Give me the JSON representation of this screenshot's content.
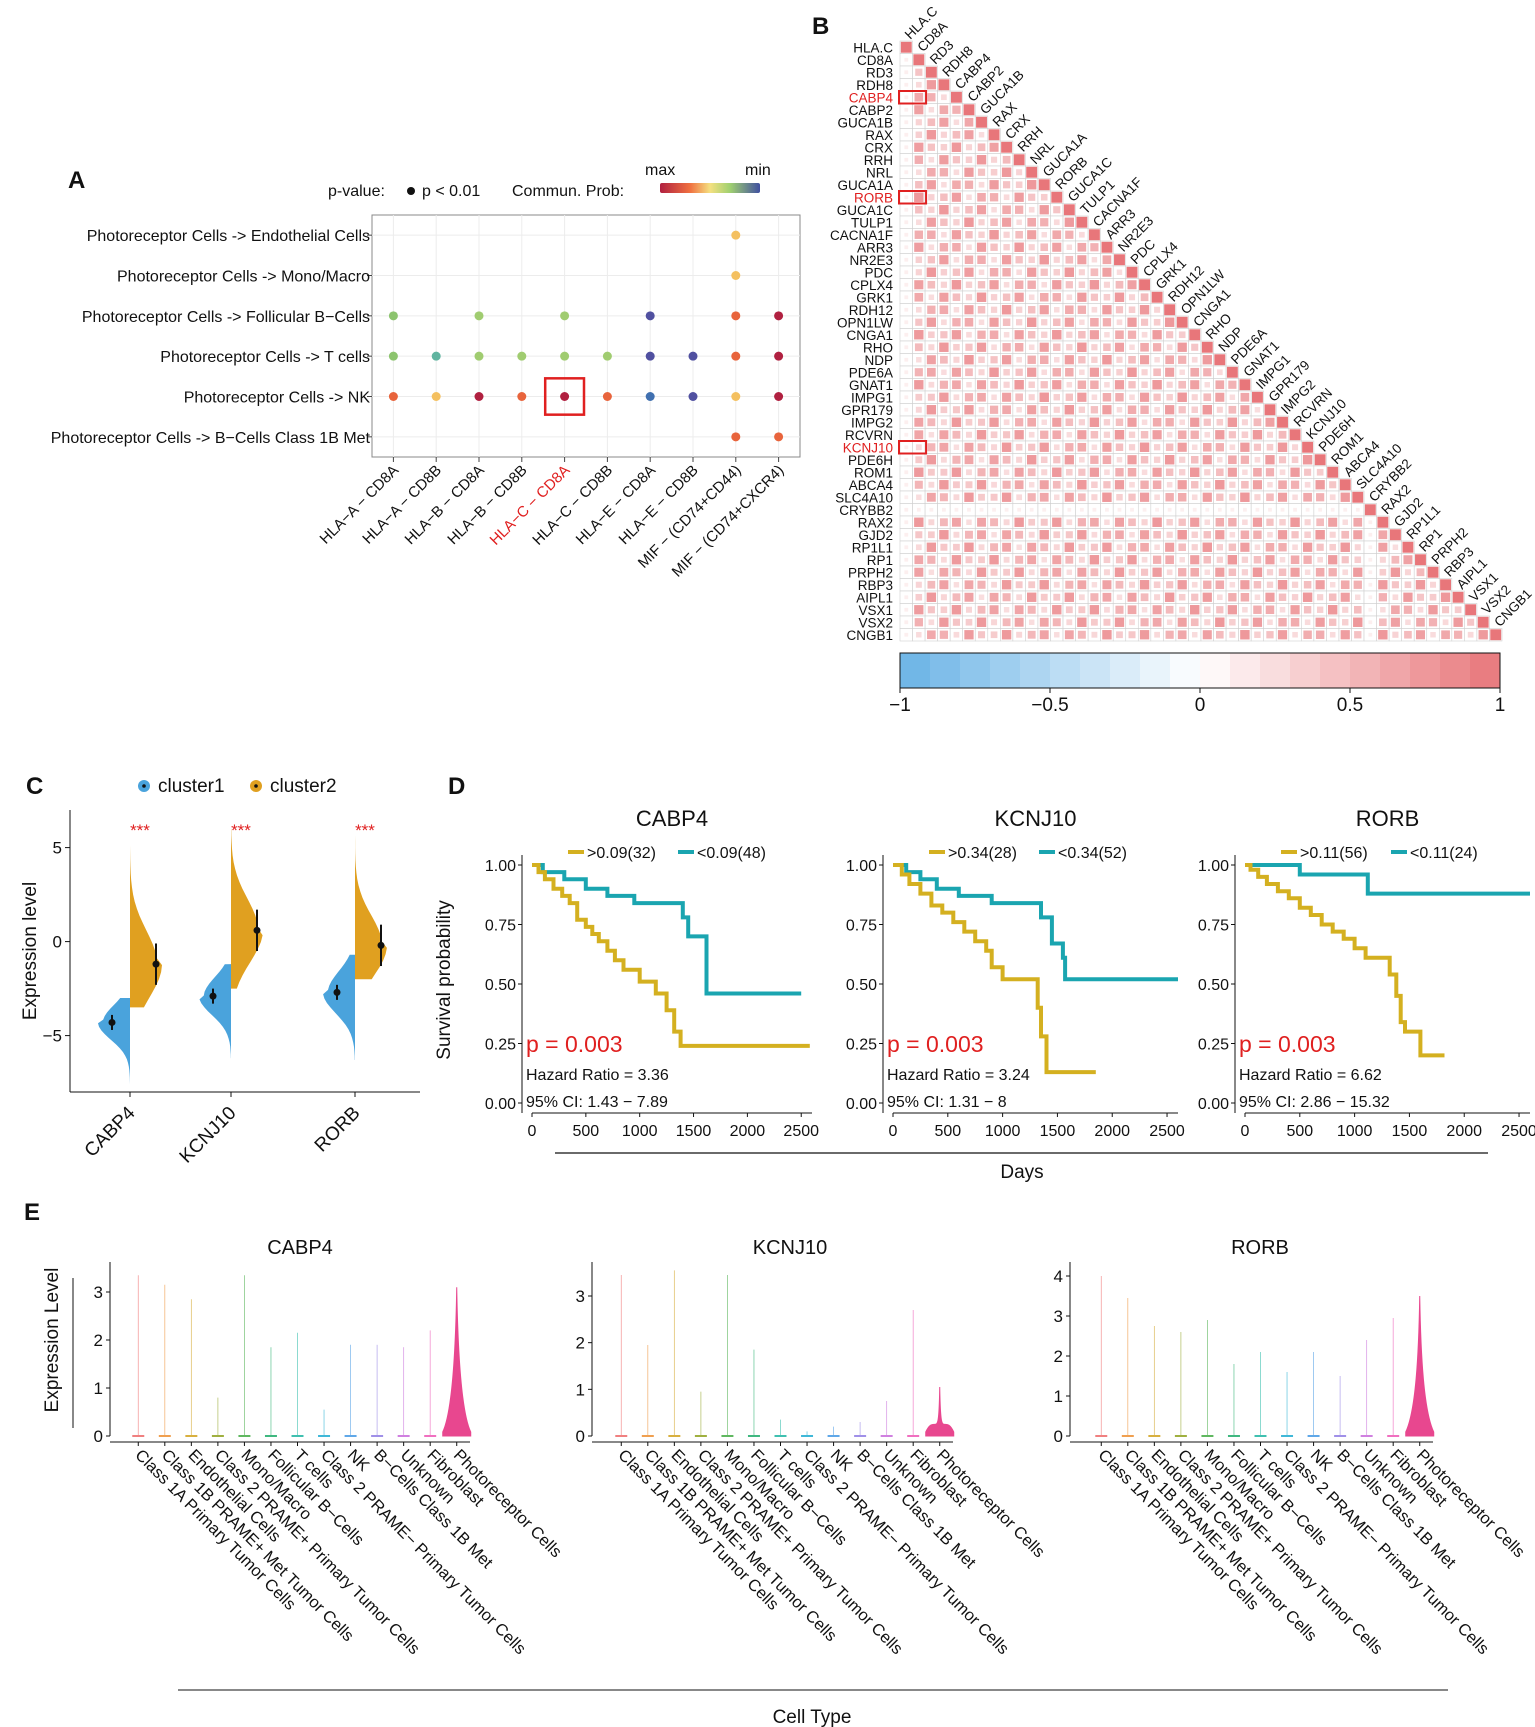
{
  "panel_labels": {
    "a": "A",
    "b": "B",
    "c": "C",
    "d": "D",
    "e": "E"
  },
  "colors": {
    "highlight": "#e02020",
    "cluster1": "#4aa3dc",
    "cluster2": "#e0a020",
    "km_high": "#d4b020",
    "km_low": "#1aa5b0",
    "violin_pink": "#e8478f",
    "corr_pos": "#e8767a",
    "corr_neg": "#6ab3e6"
  },
  "chart_data": [
    {
      "panel": "A",
      "type": "scatter",
      "title": "",
      "legend_pvalue": "p-value:",
      "legend_pvalue_item": "p < 0.01",
      "legend_prob": "Commun. Prob:",
      "legend_max": "max",
      "legend_min": "min",
      "rows": [
        "Photoreceptor Cells -> Endothelial Cells",
        "Photoreceptor Cells -> Mono/Macro",
        "Photoreceptor Cells -> Follicular B−Cells",
        "Photoreceptor Cells -> T cells",
        "Photoreceptor Cells -> NK",
        "Photoreceptor Cells -> B−Cells Class 1B Met"
      ],
      "columns": [
        "HLA−A − CD8A",
        "HLA−A − CD8B",
        "HLA−B − CD8A",
        "HLA−B − CD8B",
        "HLA−C − CD8A",
        "HLA−C − CD8B",
        "HLA−E − CD8A",
        "HLA−E − CD8B",
        "MIF − (CD74+CD44)",
        "MIF − (CD74+CXCR4)"
      ],
      "highlight_column": 4,
      "highlight_cell": {
        "row": 4,
        "col": 4
      },
      "points": [
        {
          "row": 0,
          "col": 8,
          "color": "#f4c060"
        },
        {
          "row": 1,
          "col": 8,
          "color": "#f4c060"
        },
        {
          "row": 2,
          "col": 0,
          "color": "#8cc46e"
        },
        {
          "row": 2,
          "col": 2,
          "color": "#a0cc70"
        },
        {
          "row": 2,
          "col": 4,
          "color": "#a0cc70"
        },
        {
          "row": 2,
          "col": 6,
          "color": "#5050a0"
        },
        {
          "row": 2,
          "col": 8,
          "color": "#e8643c"
        },
        {
          "row": 2,
          "col": 9,
          "color": "#b02040"
        },
        {
          "row": 3,
          "col": 0,
          "color": "#8cc46e"
        },
        {
          "row": 3,
          "col": 1,
          "color": "#60b4a0"
        },
        {
          "row": 3,
          "col": 2,
          "color": "#a0cc70"
        },
        {
          "row": 3,
          "col": 3,
          "color": "#a0cc70"
        },
        {
          "row": 3,
          "col": 4,
          "color": "#a0cc70"
        },
        {
          "row": 3,
          "col": 5,
          "color": "#a0cc70"
        },
        {
          "row": 3,
          "col": 6,
          "color": "#5050a0"
        },
        {
          "row": 3,
          "col": 7,
          "color": "#5050a0"
        },
        {
          "row": 3,
          "col": 8,
          "color": "#e8643c"
        },
        {
          "row": 3,
          "col": 9,
          "color": "#b02040"
        },
        {
          "row": 4,
          "col": 0,
          "color": "#e8643c"
        },
        {
          "row": 4,
          "col": 1,
          "color": "#f4c060"
        },
        {
          "row": 4,
          "col": 2,
          "color": "#b02040"
        },
        {
          "row": 4,
          "col": 3,
          "color": "#e8643c"
        },
        {
          "row": 4,
          "col": 4,
          "color": "#b02040"
        },
        {
          "row": 4,
          "col": 5,
          "color": "#e8643c"
        },
        {
          "row": 4,
          "col": 6,
          "color": "#4070b0"
        },
        {
          "row": 4,
          "col": 7,
          "color": "#5050a0"
        },
        {
          "row": 4,
          "col": 8,
          "color": "#f4c060"
        },
        {
          "row": 4,
          "col": 9,
          "color": "#b02040"
        },
        {
          "row": 5,
          "col": 8,
          "color": "#e8643c"
        },
        {
          "row": 5,
          "col": 9,
          "color": "#e8643c"
        }
      ]
    },
    {
      "panel": "B",
      "type": "heatmap",
      "genes": [
        "HLA.C",
        "CD8A",
        "RD3",
        "RDH8",
        "CABP4",
        "CABP2",
        "GUCA1B",
        "RAX",
        "CRX",
        "RRH",
        "NRL",
        "GUCA1A",
        "RORB",
        "GUCA1C",
        "TULP1",
        "CACNA1F",
        "ARR3",
        "NR2E3",
        "PDC",
        "CPLX4",
        "GRK1",
        "RDH12",
        "OPN1LW",
        "CNGA1",
        "RHO",
        "NDP",
        "PDE6A",
        "GNAT1",
        "IMPG1",
        "GPR179",
        "IMPG2",
        "RCVRN",
        "KCNJ10",
        "PDE6H",
        "ROM1",
        "ABCA4",
        "SLC4A10",
        "CRYBB2",
        "RAX2",
        "GJD2",
        "RP1L1",
        "RP1",
        "PRPH2",
        "RBP3",
        "AIPL1",
        "VSX1",
        "VSX2",
        "CNGB1"
      ],
      "highlight_genes": [
        "CABP4",
        "RORB",
        "KCNJ10"
      ],
      "weak_genes": [
        "HLA.C",
        "CRYBB2"
      ],
      "colorbar_range": [
        -1,
        1
      ],
      "colorbar_ticks": [
        "−1",
        "−0.5",
        "0",
        "0.5",
        "1"
      ],
      "typical_correlation": 0.5
    },
    {
      "panel": "C",
      "type": "violin",
      "legend": [
        "cluster1",
        "cluster2"
      ],
      "ylabel": "Expression level",
      "ylim": [
        -8,
        7
      ],
      "yticks": [
        "5",
        "0",
        "−5"
      ],
      "significance": "***",
      "categories": [
        "CABP4",
        "KCNJ10",
        "RORB"
      ],
      "cluster1_median": [
        -4.3,
        -2.9,
        -2.7
      ],
      "cluster2_median": [
        -1.2,
        0.6,
        -0.2
      ],
      "cluster1_range": [
        [
          -7.6,
          -3.0
        ],
        [
          -6.2,
          -1.2
        ],
        [
          -6.3,
          -0.7
        ]
      ],
      "cluster2_range": [
        [
          -3.5,
          5.5
        ],
        [
          -2.5,
          6.0
        ],
        [
          -2.0,
          6.0
        ]
      ]
    },
    {
      "panel": "D",
      "type": "line",
      "ylabel": "Survival probability",
      "xlabel": "Days",
      "xlim": [
        0,
        2600
      ],
      "ylim": [
        0,
        1
      ],
      "xticks": [
        "0",
        "500",
        "1000",
        "1500",
        "2000",
        "2500"
      ],
      "yticks": [
        "0.00",
        "0.25",
        "0.50",
        "0.75",
        "1.00"
      ],
      "plots": [
        {
          "title": "CABP4",
          "legend_high": ">0.09(32)",
          "legend_low": "<0.09(48)",
          "pvalue": "p = 0.003",
          "hazard": "Hazard Ratio = 3.36",
          "ci": "95% CI: 1.43 − 7.89",
          "high": [
            [
              0,
              1
            ],
            [
              60,
              0.97
            ],
            [
              120,
              0.94
            ],
            [
              200,
              0.9
            ],
            [
              280,
              0.87
            ],
            [
              350,
              0.84
            ],
            [
              420,
              0.77
            ],
            [
              500,
              0.74
            ],
            [
              560,
              0.71
            ],
            [
              620,
              0.68
            ],
            [
              700,
              0.64
            ],
            [
              770,
              0.6
            ],
            [
              850,
              0.56
            ],
            [
              1000,
              0.51
            ],
            [
              1150,
              0.46
            ],
            [
              1250,
              0.39
            ],
            [
              1320,
              0.3
            ],
            [
              1380,
              0.24
            ],
            [
              2580,
              0.24
            ]
          ],
          "low": [
            [
              0,
              1
            ],
            [
              100,
              0.97
            ],
            [
              300,
              0.94
            ],
            [
              500,
              0.9
            ],
            [
              700,
              0.87
            ],
            [
              950,
              0.84
            ],
            [
              1400,
              0.78
            ],
            [
              1450,
              0.7
            ],
            [
              1600,
              0.7
            ],
            [
              1620,
              0.46
            ],
            [
              2500,
              0.46
            ]
          ]
        },
        {
          "title": "KCNJ10",
          "legend_high": ">0.34(28)",
          "legend_low": "<0.34(52)",
          "pvalue": "p = 0.003",
          "hazard": "Hazard Ratio = 3.24",
          "ci": "95% CI: 1.31 − 8",
          "high": [
            [
              0,
              1
            ],
            [
              80,
              0.96
            ],
            [
              150,
              0.92
            ],
            [
              250,
              0.88
            ],
            [
              350,
              0.83
            ],
            [
              450,
              0.8
            ],
            [
              550,
              0.76
            ],
            [
              650,
              0.72
            ],
            [
              750,
              0.68
            ],
            [
              850,
              0.64
            ],
            [
              900,
              0.57
            ],
            [
              1000,
              0.52
            ],
            [
              1300,
              0.52
            ],
            [
              1320,
              0.4
            ],
            [
              1350,
              0.28
            ],
            [
              1400,
              0.13
            ],
            [
              1850,
              0.13
            ]
          ],
          "low": [
            [
              0,
              1
            ],
            [
              120,
              0.97
            ],
            [
              250,
              0.94
            ],
            [
              400,
              0.9
            ],
            [
              600,
              0.87
            ],
            [
              900,
              0.84
            ],
            [
              1350,
              0.78
            ],
            [
              1450,
              0.67
            ],
            [
              1550,
              0.61
            ],
            [
              1570,
              0.52
            ],
            [
              2600,
              0.52
            ]
          ]
        },
        {
          "title": "RORB",
          "legend_high": ">0.11(56)",
          "legend_low": "<0.11(24)",
          "pvalue": "p = 0.003",
          "hazard": "Hazard Ratio = 6.62",
          "ci": "95% CI: 2.86 − 15.32",
          "high": [
            [
              0,
              1
            ],
            [
              50,
              0.98
            ],
            [
              120,
              0.95
            ],
            [
              200,
              0.92
            ],
            [
              300,
              0.89
            ],
            [
              400,
              0.86
            ],
            [
              500,
              0.82
            ],
            [
              600,
              0.79
            ],
            [
              700,
              0.75
            ],
            [
              800,
              0.72
            ],
            [
              900,
              0.69
            ],
            [
              1000,
              0.65
            ],
            [
              1100,
              0.61
            ],
            [
              1250,
              0.61
            ],
            [
              1320,
              0.54
            ],
            [
              1380,
              0.45
            ],
            [
              1420,
              0.34
            ],
            [
              1460,
              0.3
            ],
            [
              1600,
              0.2
            ],
            [
              1820,
              0.2
            ]
          ],
          "low": [
            [
              0,
              1
            ],
            [
              500,
              0.96
            ],
            [
              1100,
              0.96
            ],
            [
              1120,
              0.88
            ],
            [
              2600,
              0.88
            ]
          ]
        }
      ]
    },
    {
      "panel": "E",
      "type": "violin",
      "ylabel": "Expression Level",
      "xlabel": "Cell Type",
      "categories": [
        "Class 1A Primary Tumor Cells",
        "Class 1B PRAME+ Met Tumor Cells",
        "Endothelial Cells",
        "Class 2 PRAME+ Primary Tumor Cells",
        "Mono/Macro",
        "Follicular B−Cells",
        "T cells",
        "Class 2 PRAME− Primary Tumor Cells",
        "NK",
        "B−Cells Class 1B Met",
        "Unknown",
        "Fibroblast",
        "Photoreceptor Cells"
      ],
      "category_colors": [
        "#f08080",
        "#f0a050",
        "#d8b040",
        "#a0b040",
        "#60b860",
        "#40b880",
        "#40c0b0",
        "#40b8d8",
        "#60a8e8",
        "#a090e8",
        "#d080e0",
        "#f070c0",
        "#e8478f"
      ],
      "plots": [
        {
          "title": "CABP4",
          "ylim": [
            0,
            3.5
          ],
          "yticks": [
            "0",
            "1",
            "2",
            "3"
          ],
          "max": [
            3.35,
            3.15,
            2.85,
            0.8,
            3.35,
            1.85,
            2.15,
            0.55,
            1.9,
            1.9,
            1.85,
            2.2,
            3.1
          ]
        },
        {
          "title": "KCNJ10",
          "ylim": [
            0,
            3.6
          ],
          "yticks": [
            "0",
            "1",
            "2",
            "3"
          ],
          "max": [
            3.45,
            1.95,
            3.55,
            0.95,
            3.45,
            1.85,
            0.35,
            0.1,
            0.2,
            0.3,
            0.75,
            2.7,
            1.05
          ]
        },
        {
          "title": "RORB",
          "ylim": [
            0,
            4.2
          ],
          "yticks": [
            "0",
            "1",
            "2",
            "3",
            "4"
          ],
          "max": [
            4.0,
            3.45,
            2.75,
            2.6,
            2.9,
            1.8,
            2.1,
            1.6,
            2.1,
            1.5,
            2.4,
            2.95,
            3.5
          ]
        }
      ]
    }
  ]
}
